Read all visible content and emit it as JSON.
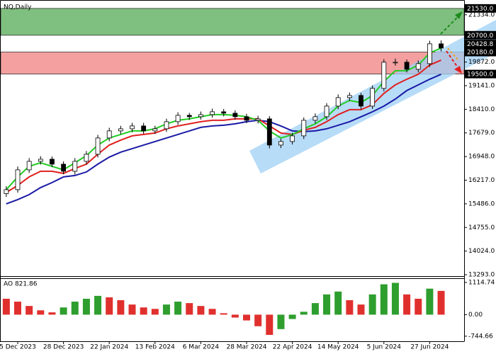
{
  "chart_data": [
    {
      "type": "candlestick",
      "title": "NQ,Daily",
      "categories": [
        null,
        "5 Dec 2023",
        null,
        null,
        null,
        "28 Dec 2023",
        null,
        null,
        null,
        "22 Jan 2024",
        null,
        null,
        null,
        "13 Feb 2024",
        null,
        null,
        null,
        "6 Mar 2024",
        null,
        null,
        null,
        "28 Mar 2024",
        null,
        null,
        null,
        "22 Apr 2024",
        null,
        null,
        null,
        "14 May 2024",
        null,
        null,
        null,
        "5 Jun 2024",
        null,
        null,
        null,
        "27 Jun 2024",
        null
      ],
      "open": [
        15800,
        15924,
        16537,
        16800,
        16866,
        16712,
        16493,
        16800,
        17019,
        17522,
        17742,
        17807,
        17895,
        17742,
        17807,
        18026,
        18223,
        18180,
        18245,
        18333,
        18289,
        18180,
        18070,
        18114,
        17303,
        17413,
        17588,
        18070,
        18180,
        18508,
        18771,
        18837,
        18508,
        19056,
        19866,
        19866,
        19647,
        19822,
        20435
      ],
      "high": [
        16030,
        16640,
        16900,
        16960,
        16950,
        16800,
        16900,
        17120,
        17620,
        17840,
        17900,
        17990,
        17990,
        17900,
        18120,
        18320,
        18300,
        18340,
        18430,
        18420,
        18380,
        18270,
        18210,
        18200,
        17500,
        17680,
        18160,
        18280,
        18600,
        18870,
        18930,
        18920,
        19150,
        19960,
        19980,
        19950,
        19920,
        20530,
        20540
      ],
      "low": [
        15700,
        15830,
        16440,
        16700,
        16620,
        16400,
        16390,
        16700,
        16920,
        17420,
        17640,
        17700,
        17650,
        17650,
        17710,
        17930,
        18080,
        18090,
        18150,
        18190,
        18090,
        17980,
        17970,
        17200,
        17210,
        17320,
        17490,
        17970,
        18080,
        18410,
        18670,
        18410,
        18420,
        18960,
        19760,
        19550,
        19550,
        19720,
        20200
      ],
      "close": [
        15924,
        16537,
        16800,
        16866,
        16712,
        16493,
        16800,
        17019,
        17522,
        17742,
        17807,
        17895,
        17742,
        17807,
        18026,
        18223,
        18180,
        18245,
        18333,
        18289,
        18180,
        18070,
        18114,
        17303,
        17413,
        17588,
        18070,
        18180,
        18508,
        18771,
        18837,
        18508,
        19056,
        19866,
        19866,
        19647,
        19822,
        20435,
        20304
      ],
      "up_color": "#ffffff",
      "down_color": "#000000",
      "series": [
        {
          "color": "#1a1aa6",
          "values": [
            15486,
            15617,
            15770,
            15990,
            16143,
            16318,
            16362,
            16471,
            16712,
            16931,
            17085,
            17194,
            17303,
            17413,
            17523,
            17632,
            17742,
            17851,
            17895,
            17917,
            17961,
            18026,
            18070,
            18026,
            17895,
            17742,
            17720,
            17742,
            17807,
            17917,
            18026,
            18180,
            18333,
            18508,
            18727,
            18990,
            19165,
            19340,
            19494
          ]
        },
        {
          "color": "#e02020",
          "values": [
            15836,
            16055,
            16318,
            16493,
            16493,
            16428,
            16581,
            16712,
            17019,
            17303,
            17457,
            17588,
            17632,
            17676,
            17807,
            17895,
            17961,
            18026,
            18070,
            18070,
            18114,
            18114,
            18114,
            17895,
            17676,
            17632,
            17764,
            17851,
            18026,
            18245,
            18398,
            18398,
            18552,
            18902,
            19165,
            19340,
            19494,
            19778,
            19932
          ]
        },
        {
          "color": "#22cc22",
          "values": [
            15924,
            16318,
            16647,
            16756,
            16647,
            16537,
            16756,
            16975,
            17303,
            17523,
            17632,
            17742,
            17742,
            17807,
            17961,
            18070,
            18114,
            18180,
            18245,
            18245,
            18223,
            18180,
            18070,
            17742,
            17523,
            17632,
            17807,
            17961,
            18180,
            18508,
            18683,
            18617,
            18837,
            19275,
            19603,
            19603,
            19778,
            20151,
            20304
          ]
        }
      ],
      "zones": [
        {
          "color": "#7fbf7f",
          "top": {
            "value": 21530,
            "label": "21530.0"
          },
          "bottom": {
            "value": 20700,
            "label": "20700.0"
          }
        },
        {
          "color": "#f4a0a0",
          "top": {
            "value": 20180,
            "label": "20180.0"
          },
          "bottom": {
            "value": 19500,
            "label": "19500.0"
          }
        }
      ],
      "last_price": {
        "value": 20428.8,
        "label": "20428.8"
      },
      "ylim": [
        13250,
        21790
      ],
      "yticks": [
        {
          "value": 21334,
          "label": "21334.0"
        },
        {
          "value": 19872,
          "label": "19872.0"
        },
        {
          "value": 19141,
          "label": "19141.0"
        },
        {
          "value": 18410,
          "label": "18410.0"
        },
        {
          "value": 17679,
          "label": "17679.0"
        },
        {
          "value": 16948,
          "label": "16948.0"
        },
        {
          "value": 16217,
          "label": "16217.0"
        },
        {
          "value": 15486,
          "label": "15486.0"
        },
        {
          "value": 14755,
          "label": "14755.0"
        },
        {
          "value": 14024,
          "label": "14024.0"
        },
        {
          "value": 13293,
          "label": "13293.0"
        }
      ]
    },
    {
      "type": "histogram",
      "title": "AO 821.86",
      "values": [
        550,
        450,
        300,
        150,
        80,
        250,
        450,
        550,
        650,
        600,
        500,
        350,
        250,
        200,
        350,
        450,
        400,
        300,
        200,
        50,
        -100,
        -200,
        -400,
        -700,
        -500,
        -150,
        100,
        400,
        700,
        800,
        500,
        350,
        700,
        1050,
        1100,
        700,
        550,
        900,
        822
      ],
      "up_color": "#2e9e2e",
      "down_color": "#e0302e",
      "ylim": [
        -920,
        1235
      ],
      "yticks": [
        1114.74,
        {
          "value": 0,
          "label": "0.00"
        },
        -744.66
      ]
    }
  ]
}
